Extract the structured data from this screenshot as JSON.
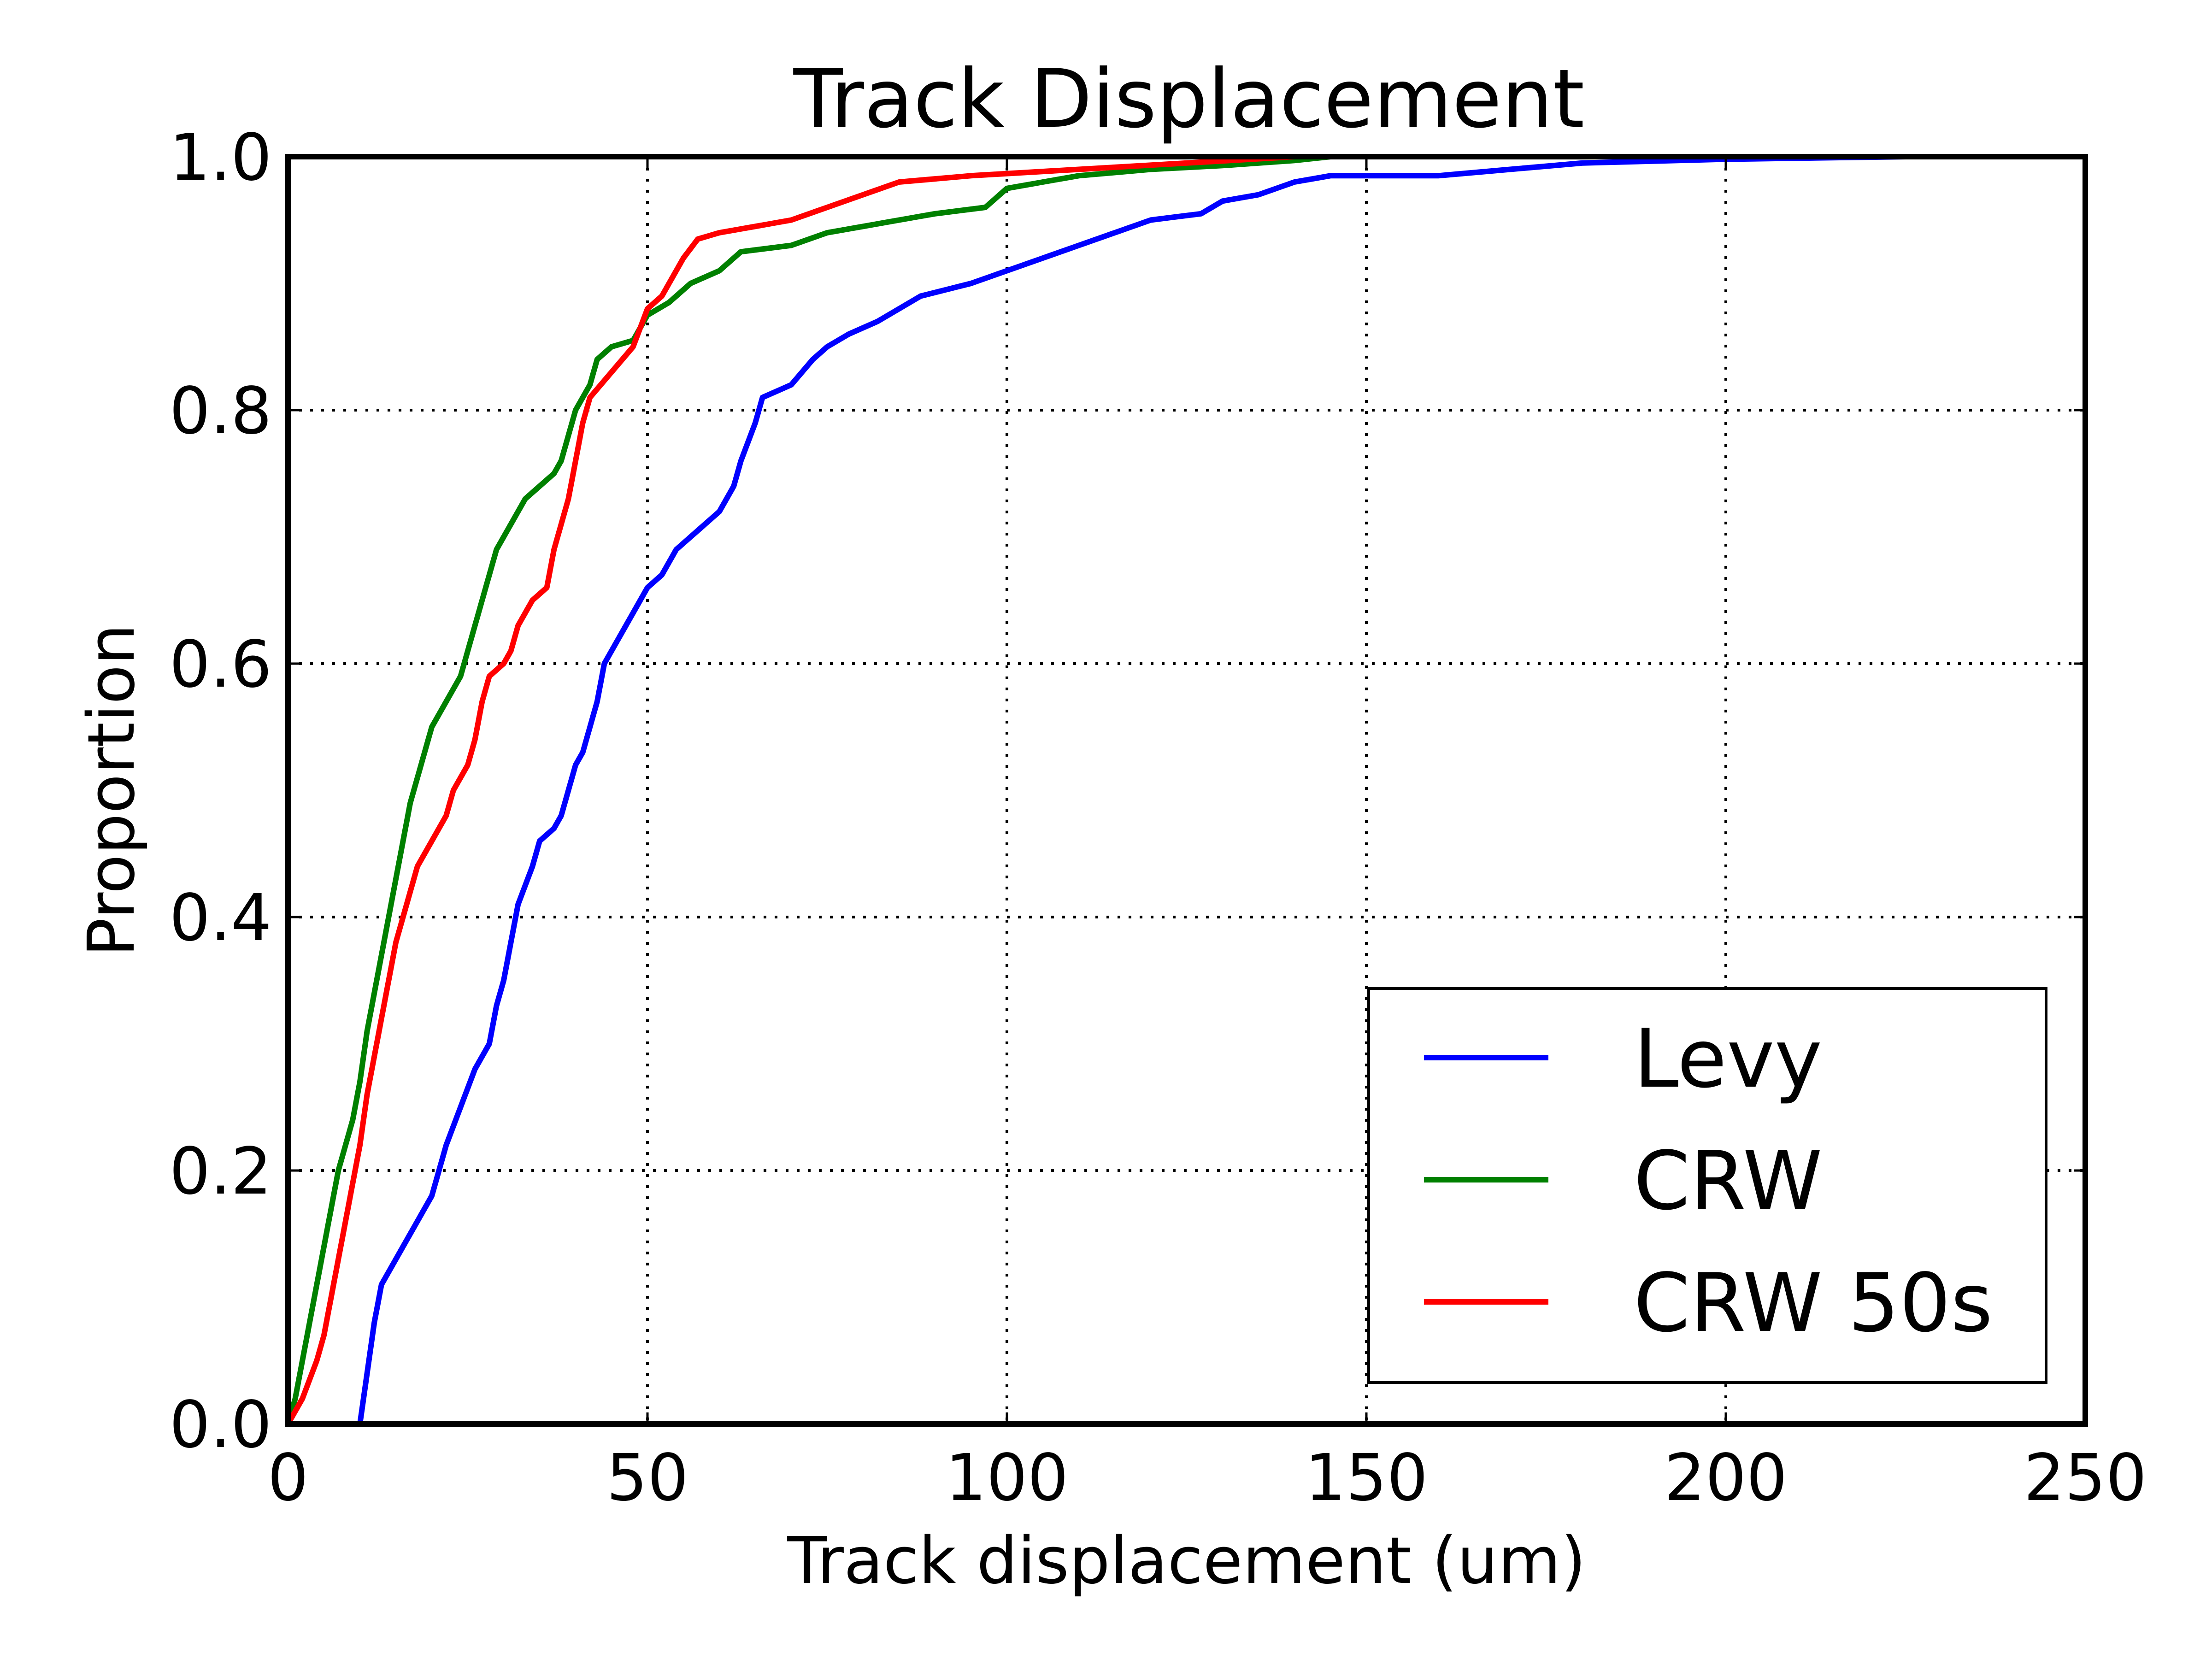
{
  "chart_data": {
    "type": "line",
    "title": "Track Displacement",
    "xlabel": "Track displacement (um)",
    "ylabel": "Proportion",
    "xlim": [
      0,
      250
    ],
    "ylim": [
      0.0,
      1.0
    ],
    "xticks": [
      "0",
      "50",
      "100",
      "150",
      "200",
      "250"
    ],
    "yticks": [
      "0.0",
      "0.2",
      "0.4",
      "0.6",
      "0.8",
      "1.0"
    ],
    "grid": true,
    "legend_position": "lower-right",
    "series": [
      {
        "name": "Levy",
        "color": "#0000ff",
        "points": [
          [
            10,
            0
          ],
          [
            11,
            0.04
          ],
          [
            12,
            0.08
          ],
          [
            13,
            0.11
          ],
          [
            15,
            0.13
          ],
          [
            17,
            0.15
          ],
          [
            19,
            0.17
          ],
          [
            20,
            0.18
          ],
          [
            21,
            0.2
          ],
          [
            22,
            0.22
          ],
          [
            24,
            0.25
          ],
          [
            26,
            0.28
          ],
          [
            28,
            0.3
          ],
          [
            29,
            0.33
          ],
          [
            30,
            0.35
          ],
          [
            31,
            0.38
          ],
          [
            32,
            0.41
          ],
          [
            34,
            0.44
          ],
          [
            35,
            0.46
          ],
          [
            37,
            0.47
          ],
          [
            38,
            0.48
          ],
          [
            39,
            0.5
          ],
          [
            40,
            0.52
          ],
          [
            41,
            0.53
          ],
          [
            42,
            0.55
          ],
          [
            43,
            0.57
          ],
          [
            44,
            0.6
          ],
          [
            45,
            0.61
          ],
          [
            46,
            0.62
          ],
          [
            48,
            0.64
          ],
          [
            49,
            0.65
          ],
          [
            50,
            0.66
          ],
          [
            52,
            0.67
          ],
          [
            54,
            0.69
          ],
          [
            56,
            0.7
          ],
          [
            58,
            0.71
          ],
          [
            60,
            0.72
          ],
          [
            62,
            0.74
          ],
          [
            63,
            0.76
          ],
          [
            65,
            0.79
          ],
          [
            66,
            0.81
          ],
          [
            70,
            0.82
          ],
          [
            73,
            0.84
          ],
          [
            75,
            0.85
          ],
          [
            78,
            0.86
          ],
          [
            82,
            0.87
          ],
          [
            85,
            0.88
          ],
          [
            88,
            0.89
          ],
          [
            95,
            0.9
          ],
          [
            100,
            0.91
          ],
          [
            105,
            0.92
          ],
          [
            110,
            0.93
          ],
          [
            115,
            0.94
          ],
          [
            120,
            0.95
          ],
          [
            127,
            0.955
          ],
          [
            130,
            0.965
          ],
          [
            135,
            0.97
          ],
          [
            140,
            0.98
          ],
          [
            145,
            0.985
          ],
          [
            160,
            0.985
          ],
          [
            170,
            0.99
          ],
          [
            180,
            0.995
          ],
          [
            200,
            0.998
          ],
          [
            225,
            1.0
          ]
        ]
      },
      {
        "name": "CRW",
        "color": "#008000",
        "points": [
          [
            0,
            0
          ],
          [
            1,
            0.02
          ],
          [
            2,
            0.05
          ],
          [
            3,
            0.08
          ],
          [
            4,
            0.11
          ],
          [
            5,
            0.14
          ],
          [
            6,
            0.17
          ],
          [
            7,
            0.2
          ],
          [
            8,
            0.22
          ],
          [
            9,
            0.24
          ],
          [
            10,
            0.27
          ],
          [
            11,
            0.31
          ],
          [
            12,
            0.34
          ],
          [
            13,
            0.37
          ],
          [
            14,
            0.4
          ],
          [
            15,
            0.43
          ],
          [
            16,
            0.46
          ],
          [
            17,
            0.49
          ],
          [
            18,
            0.51
          ],
          [
            19,
            0.53
          ],
          [
            20,
            0.55
          ],
          [
            22,
            0.57
          ],
          [
            24,
            0.59
          ],
          [
            25,
            0.61
          ],
          [
            26,
            0.63
          ],
          [
            27,
            0.65
          ],
          [
            28,
            0.67
          ],
          [
            29,
            0.69
          ],
          [
            31,
            0.71
          ],
          [
            33,
            0.73
          ],
          [
            35,
            0.74
          ],
          [
            37,
            0.75
          ],
          [
            38,
            0.76
          ],
          [
            39,
            0.78
          ],
          [
            40,
            0.8
          ],
          [
            42,
            0.82
          ],
          [
            43,
            0.84
          ],
          [
            45,
            0.85
          ],
          [
            48,
            0.855
          ],
          [
            50,
            0.875
          ],
          [
            53,
            0.885
          ],
          [
            56,
            0.9
          ],
          [
            60,
            0.91
          ],
          [
            63,
            0.925
          ],
          [
            70,
            0.93
          ],
          [
            75,
            0.94
          ],
          [
            80,
            0.945
          ],
          [
            85,
            0.95
          ],
          [
            90,
            0.955
          ],
          [
            97,
            0.96
          ],
          [
            100,
            0.975
          ],
          [
            105,
            0.98
          ],
          [
            110,
            0.985
          ],
          [
            120,
            0.99
          ],
          [
            130,
            0.993
          ],
          [
            140,
            0.997
          ],
          [
            145,
            1.0
          ]
        ]
      },
      {
        "name": "CRW 50s",
        "color": "#ff0000",
        "points": [
          [
            0,
            0
          ],
          [
            2,
            0.02
          ],
          [
            4,
            0.05
          ],
          [
            5,
            0.07
          ],
          [
            6,
            0.1
          ],
          [
            7,
            0.13
          ],
          [
            8,
            0.16
          ],
          [
            9,
            0.19
          ],
          [
            10,
            0.22
          ],
          [
            11,
            0.26
          ],
          [
            12,
            0.29
          ],
          [
            13,
            0.32
          ],
          [
            14,
            0.35
          ],
          [
            15,
            0.38
          ],
          [
            16,
            0.4
          ],
          [
            17,
            0.42
          ],
          [
            18,
            0.44
          ],
          [
            20,
            0.46
          ],
          [
            22,
            0.48
          ],
          [
            23,
            0.5
          ],
          [
            25,
            0.52
          ],
          [
            26,
            0.54
          ],
          [
            27,
            0.57
          ],
          [
            28,
            0.59
          ],
          [
            30,
            0.6
          ],
          [
            31,
            0.61
          ],
          [
            32,
            0.63
          ],
          [
            34,
            0.65
          ],
          [
            36,
            0.66
          ],
          [
            37,
            0.69
          ],
          [
            38,
            0.71
          ],
          [
            39,
            0.73
          ],
          [
            40,
            0.76
          ],
          [
            41,
            0.79
          ],
          [
            42,
            0.81
          ],
          [
            45,
            0.83
          ],
          [
            48,
            0.85
          ],
          [
            50,
            0.88
          ],
          [
            52,
            0.89
          ],
          [
            53,
            0.9
          ],
          [
            54,
            0.91
          ],
          [
            55,
            0.92
          ],
          [
            57,
            0.935
          ],
          [
            60,
            0.94
          ],
          [
            65,
            0.945
          ],
          [
            70,
            0.95
          ],
          [
            75,
            0.96
          ],
          [
            80,
            0.97
          ],
          [
            85,
            0.98
          ],
          [
            95,
            0.985
          ],
          [
            110,
            0.99
          ],
          [
            125,
            0.995
          ],
          [
            140,
            1.0
          ]
        ]
      }
    ]
  }
}
